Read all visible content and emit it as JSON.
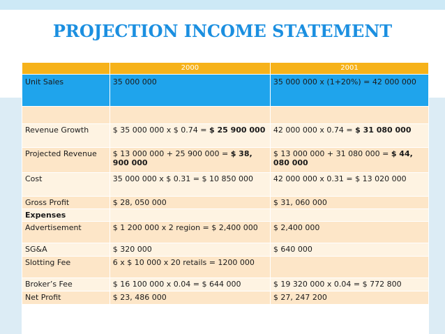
{
  "title": "PROJECTION INCOME STATEMENT",
  "colors": {
    "title": "#1b8fe0",
    "header": "#f6b21a",
    "blue_row": "#1fa4ec",
    "row_a": "#fde6c8",
    "row_b": "#fef3e2"
  },
  "header": {
    "label": "",
    "y2000": "2000",
    "y2001": "2001"
  },
  "unit_sales": {
    "label": "Unit Sales",
    "y2000": "35 000 000",
    "y2001": "35 000 000 x (1+20%) = 42 000 000"
  },
  "revenue_growth": {
    "label": "Revenue Growth",
    "y2000_pre": "$ 35 000 000 x $ 0.74 = ",
    "y2000_bold": "$ 25 900 000",
    "y2001_pre": "42 000 000 x 0.74 = ",
    "y2001_bold": "$ 31 080 000"
  },
  "projected_revenue": {
    "label": "Projected Revenue",
    "y2000_pre": "$ 13 000 000 + 25 900 000 = ",
    "y2000_bold": "$ 38, 900 000",
    "y2001_pre": "$ 13 000 000 + 31 080 000 = ",
    "y2001_bold": "$ 44, 080 000"
  },
  "cost": {
    "label": "Cost",
    "y2000": "35 000 000 x $ 0.31 = $ 10 850 000",
    "y2001": "42 000 000 x 0.31 = $ 13 020 000"
  },
  "gross_profit": {
    "label": "Gross Profit",
    "y2000": "$ 28, 050 000",
    "y2001": "$ 31, 060 000"
  },
  "expenses": {
    "label": "Expenses"
  },
  "advertisement": {
    "label": "Advertisement",
    "y2000": "$ 1 200 000 x 2 region = $ 2,400 000",
    "y2001": "$ 2,400 000"
  },
  "sga": {
    "label": "SG&A",
    "y2000": "$ 320 000",
    "y2001": "$ 640 000"
  },
  "slotting_fee": {
    "label": "Slotting Fee",
    "y2000": "6 x $ 10 000 x 20 retails = 1200 000",
    "y2001": ""
  },
  "brokers_fee": {
    "label": "Broker’s Fee",
    "y2000": "$ 16 100 000 x 0.04 = $ 644 000",
    "y2001": "$ 19 320 000 x 0.04 = $ 772 800"
  },
  "net_profit": {
    "label": "Net Profit",
    "y2000": "$ 23, 486 000",
    "y2001": "$ 27, 247 200"
  }
}
